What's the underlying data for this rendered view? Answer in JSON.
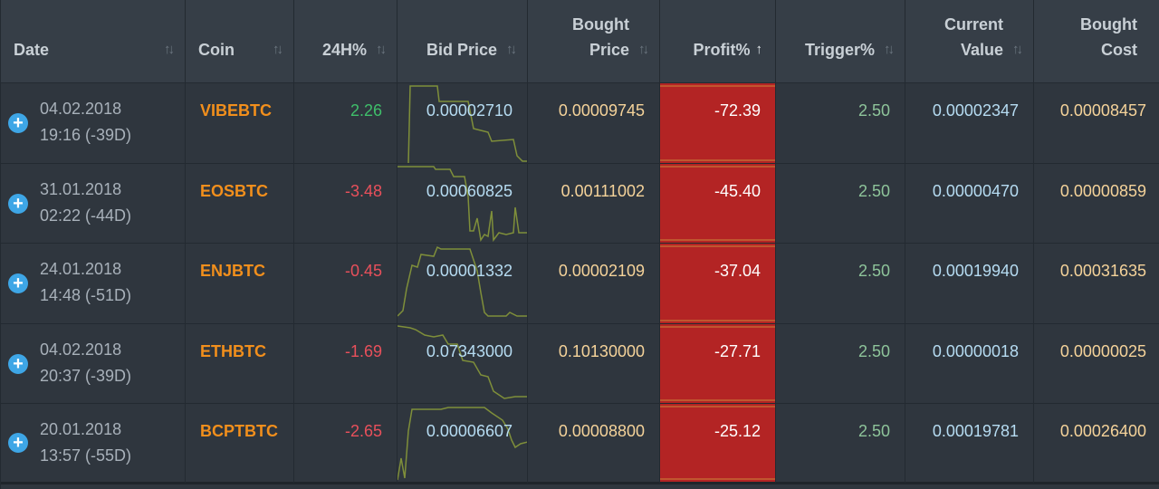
{
  "columns": {
    "date": "Date",
    "coin": "Coin",
    "h24": "24H%",
    "bid": "Bid Price",
    "bought_1": "Bought",
    "bought_2": "Price",
    "profit": "Profit%",
    "trigger": "Trigger%",
    "current_1": "Current",
    "current_2": "Value",
    "cost_1": "Bought",
    "cost_2": "Cost"
  },
  "sort_icon": "sort-arrows-icon",
  "sort_active_icon": "sort-ascending-icon",
  "colors": {
    "coin": "#f28f1c",
    "positive": "#3fbf6a",
    "negative": "#e8505b",
    "profit_bg": "#b32424",
    "bid": "#b6dcf2",
    "bought": "#f5d39a",
    "trigger": "#8ec49a"
  },
  "rows": [
    {
      "date": "04.02.2018",
      "time": "19:16 (-39D)",
      "coin": "VIBEBTC",
      "h24": "2.26",
      "bid": "0.00002710",
      "bought": "0.00009745",
      "profit": "-72.39",
      "trigger": "2.50",
      "current": "0.00002347",
      "cost": "0.00008457"
    },
    {
      "date": "31.01.2018",
      "time": "02:22 (-44D)",
      "coin": "EOSBTC",
      "h24": "-3.48",
      "bid": "0.00060825",
      "bought": "0.00111002",
      "profit": "-45.40",
      "trigger": "2.50",
      "current": "0.00000470",
      "cost": "0.00000859"
    },
    {
      "date": "24.01.2018",
      "time": "14:48 (-51D)",
      "coin": "ENJBTC",
      "h24": "-0.45",
      "bid": "0.00001332",
      "bought": "0.00002109",
      "profit": "-37.04",
      "trigger": "2.50",
      "current": "0.00019940",
      "cost": "0.00031635"
    },
    {
      "date": "04.02.2018",
      "time": "20:37 (-39D)",
      "coin": "ETHBTC",
      "h24": "-1.69",
      "bid": "0.07343000",
      "bought": "0.10130000",
      "profit": "-27.71",
      "trigger": "2.50",
      "current": "0.00000018",
      "cost": "0.00000025"
    },
    {
      "date": "20.01.2018",
      "time": "13:57 (-55D)",
      "coin": "BCPTBTC",
      "h24": "-2.65",
      "bid": "0.00006607",
      "bought": "0.00008800",
      "profit": "-25.12",
      "trigger": "2.50",
      "current": "0.00019781",
      "cost": "0.00026400"
    }
  ]
}
